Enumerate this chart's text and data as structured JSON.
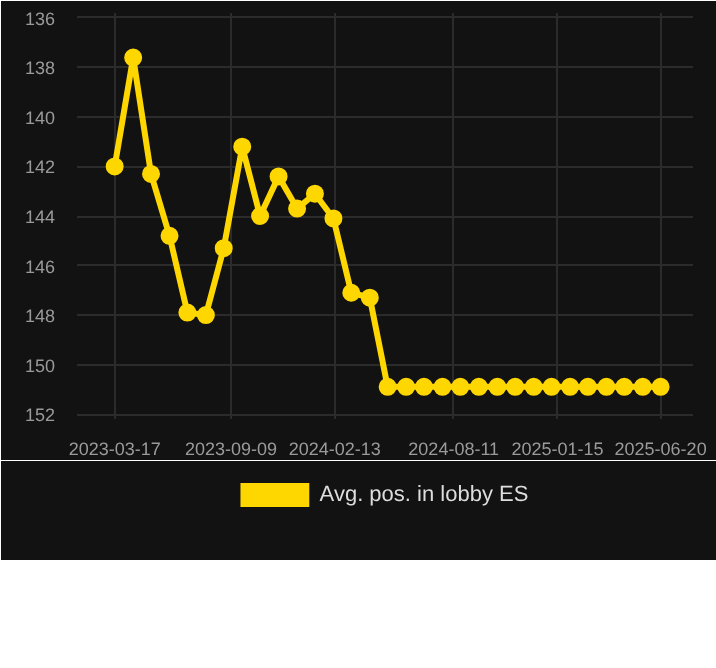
{
  "chart_data": {
    "type": "line",
    "x": [
      "2023-03-17",
      "2023-04-14",
      "2023-05-11",
      "2023-06-08",
      "2023-07-05",
      "2023-08-02",
      "2023-08-29",
      "2023-09-26",
      "2023-10-23",
      "2023-11-20",
      "2023-12-18",
      "2024-01-14",
      "2024-02-11",
      "2024-03-09",
      "2024-04-06",
      "2024-05-03",
      "2024-05-31",
      "2024-06-27",
      "2024-07-25",
      "2024-08-21",
      "2024-09-18",
      "2024-10-16",
      "2024-11-12",
      "2024-12-10",
      "2025-01-06",
      "2025-02-03",
      "2025-03-02",
      "2025-03-30",
      "2025-04-26",
      "2025-05-24",
      "2025-06-20"
    ],
    "series": [
      {
        "name": "Avg. pos. in lobby ES",
        "color": "#ffd700",
        "values": [
          142.0,
          137.6,
          142.3,
          144.8,
          147.9,
          148.0,
          145.3,
          141.2,
          144.0,
          142.4,
          143.7,
          143.1,
          144.1,
          147.1,
          147.3,
          150.9,
          150.9,
          150.9,
          150.9,
          150.9,
          150.9,
          150.9,
          150.9,
          150.9,
          150.9,
          150.9,
          150.9,
          150.9,
          150.9,
          150.9,
          150.9
        ]
      }
    ],
    "xlim": [
      "2023-01-19",
      "2025-08-08"
    ],
    "ylim": [
      152.2,
      135.8
    ],
    "xticks": [
      "2023-03-17",
      "2023-09-09",
      "2024-02-13",
      "2024-08-11",
      "2025-01-15",
      "2025-06-20"
    ],
    "yticks": [
      136,
      138,
      140,
      142,
      144,
      146,
      148,
      150,
      152
    ],
    "grid": true,
    "legend": "bottom",
    "marker": "circle",
    "line_style": "solid"
  }
}
